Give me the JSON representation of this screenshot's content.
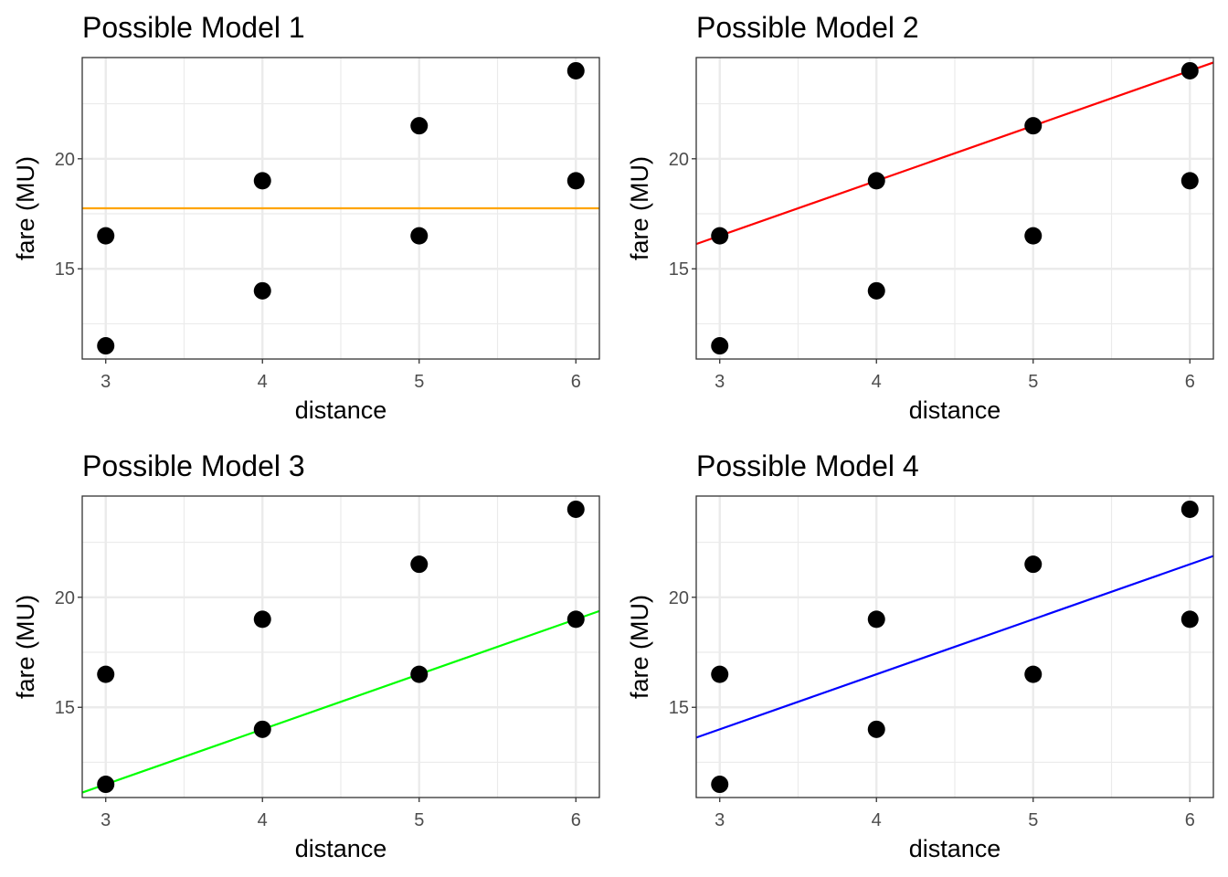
{
  "chart_data": [
    {
      "type": "scatter",
      "title": "Possible Model 1",
      "xlabel": "distance",
      "ylabel": "fare (MU)",
      "x": [
        3,
        3,
        4,
        4,
        5,
        5,
        6,
        6
      ],
      "y": [
        11.5,
        16.5,
        14,
        19,
        16.5,
        21.5,
        19,
        24
      ],
      "xlim": [
        2.85,
        6.15
      ],
      "ylim": [
        10.9,
        24.6
      ],
      "xticks": [
        3,
        4,
        5,
        6
      ],
      "yticks": [
        15,
        20
      ],
      "grid": true,
      "line": {
        "intercept": 17.75,
        "slope": 0,
        "color": "#ffa500"
      }
    },
    {
      "type": "scatter",
      "title": "Possible Model 2",
      "xlabel": "distance",
      "ylabel": "fare (MU)",
      "x": [
        3,
        3,
        4,
        4,
        5,
        5,
        6,
        6
      ],
      "y": [
        11.5,
        16.5,
        14,
        19,
        16.5,
        21.5,
        19,
        24
      ],
      "xlim": [
        2.85,
        6.15
      ],
      "ylim": [
        10.9,
        24.6
      ],
      "xticks": [
        3,
        4,
        5,
        6
      ],
      "yticks": [
        15,
        20
      ],
      "grid": true,
      "line": {
        "intercept": 9,
        "slope": 2.5,
        "color": "#ff0000"
      }
    },
    {
      "type": "scatter",
      "title": "Possible Model 3",
      "xlabel": "distance",
      "ylabel": "fare (MU)",
      "x": [
        3,
        3,
        4,
        4,
        5,
        5,
        6,
        6
      ],
      "y": [
        11.5,
        16.5,
        14,
        19,
        16.5,
        21.5,
        19,
        24
      ],
      "xlim": [
        2.85,
        6.15
      ],
      "ylim": [
        10.9,
        24.6
      ],
      "xticks": [
        3,
        4,
        5,
        6
      ],
      "yticks": [
        15,
        20
      ],
      "grid": true,
      "line": {
        "intercept": 4,
        "slope": 2.5,
        "color": "#00ff00"
      }
    },
    {
      "type": "scatter",
      "title": "Possible Model 4",
      "xlabel": "distance",
      "ylabel": "fare (MU)",
      "x": [
        3,
        3,
        4,
        4,
        5,
        5,
        6,
        6
      ],
      "y": [
        11.5,
        16.5,
        14,
        19,
        16.5,
        21.5,
        19,
        24
      ],
      "xlim": [
        2.85,
        6.15
      ],
      "ylim": [
        10.9,
        24.6
      ],
      "xticks": [
        3,
        4,
        5,
        6
      ],
      "yticks": [
        15,
        20
      ],
      "grid": true,
      "line": {
        "intercept": 6.5,
        "slope": 2.5,
        "color": "#0000ff"
      }
    }
  ]
}
